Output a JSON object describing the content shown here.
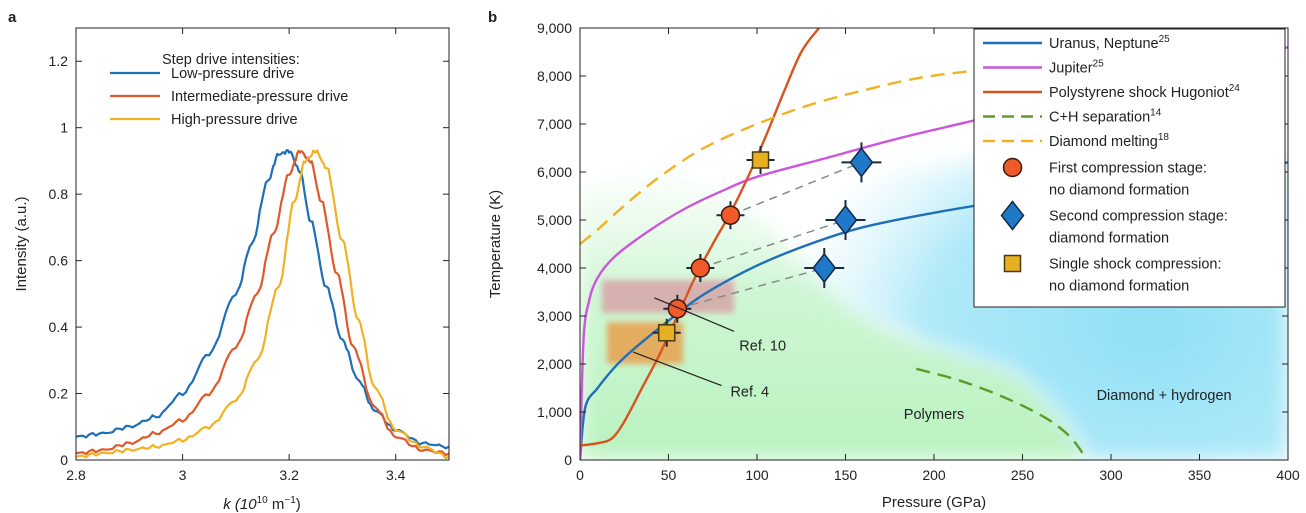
{
  "chart_data": [
    {
      "panel_label": "a",
      "type": "line",
      "xlabel_pre": "k (10",
      "xlabel_exp": "10",
      "xlabel_mid": " m",
      "xlabel_exp2": "−1",
      "xlabel_post": ")",
      "ylabel": "Intensity (a.u.)",
      "xlim": [
        2.8,
        3.5
      ],
      "ylim": [
        0,
        1.3
      ],
      "xticks": [
        2.8,
        3,
        3.2,
        3.4
      ],
      "xtick_labels": [
        "2.8",
        "3",
        "3.2",
        "3.4"
      ],
      "yticks": [
        0,
        0.2,
        0.4,
        0.6,
        0.8,
        1,
        1.2
      ],
      "ytick_labels": [
        "0",
        "0.2",
        "0.4",
        "0.6",
        "0.8",
        "1",
        "1.2"
      ],
      "legend_title": "Step drive intensities:",
      "legend_position": "top-left",
      "series": [
        {
          "name": "Low-pressure drive",
          "color": "#1f6fb8",
          "x": [
            2.8,
            2.85,
            2.9,
            2.95,
            3.0,
            3.05,
            3.1,
            3.13,
            3.16,
            3.18,
            3.2,
            3.22,
            3.24,
            3.27,
            3.3,
            3.33,
            3.36,
            3.4,
            3.45,
            3.5
          ],
          "y": [
            0.07,
            0.08,
            0.1,
            0.13,
            0.2,
            0.32,
            0.5,
            0.65,
            0.84,
            0.92,
            0.93,
            0.87,
            0.72,
            0.52,
            0.36,
            0.24,
            0.15,
            0.09,
            0.05,
            0.04
          ]
        },
        {
          "name": "Intermediate-pressure drive",
          "color": "#e0592a",
          "x": [
            2.8,
            2.85,
            2.9,
            2.95,
            3.0,
            3.05,
            3.1,
            3.14,
            3.17,
            3.2,
            3.22,
            3.24,
            3.26,
            3.29,
            3.32,
            3.36,
            3.4,
            3.45,
            3.5
          ],
          "y": [
            0.02,
            0.03,
            0.05,
            0.08,
            0.12,
            0.2,
            0.34,
            0.5,
            0.68,
            0.86,
            0.93,
            0.9,
            0.78,
            0.56,
            0.34,
            0.16,
            0.07,
            0.03,
            0.02
          ]
        },
        {
          "name": "High-pressure drive",
          "color": "#f2b122",
          "x": [
            2.8,
            2.85,
            2.9,
            2.95,
            3.0,
            3.05,
            3.1,
            3.14,
            3.18,
            3.21,
            3.23,
            3.25,
            3.27,
            3.3,
            3.33,
            3.36,
            3.4,
            3.45,
            3.5
          ],
          "y": [
            0.01,
            0.02,
            0.03,
            0.04,
            0.06,
            0.1,
            0.18,
            0.3,
            0.52,
            0.78,
            0.9,
            0.93,
            0.88,
            0.66,
            0.42,
            0.22,
            0.09,
            0.04,
            0.01
          ]
        }
      ]
    },
    {
      "panel_label": "b",
      "type": "line",
      "xlabel": "Pressure (GPa)",
      "ylabel": "Temperature (K)",
      "xlim": [
        0,
        400
      ],
      "ylim": [
        0,
        9000
      ],
      "xticks": [
        0,
        50,
        100,
        150,
        200,
        250,
        300,
        350,
        400
      ],
      "xtick_labels": [
        "0",
        "50",
        "100",
        "150",
        "200",
        "250",
        "300",
        "350",
        "400"
      ],
      "yticks": [
        0,
        1000,
        2000,
        3000,
        4000,
        5000,
        6000,
        7000,
        8000,
        9000
      ],
      "ytick_labels": [
        "0",
        "1,000",
        "2,000",
        "3,000",
        "4,000",
        "5,000",
        "6,000",
        "7,000",
        "8,000",
        "9,000"
      ],
      "legend_position": "top-right",
      "region_labels": [
        {
          "text": "Polymers",
          "x": 200,
          "y": 850
        },
        {
          "text": "Diamond + hydrogen",
          "x": 330,
          "y": 1250
        }
      ],
      "annotations": [
        {
          "text": "Ref. 10",
          "x": 90,
          "y": 2280,
          "line_from": [
            42,
            3380
          ],
          "line_to": [
            87,
            2680
          ]
        },
        {
          "text": "Ref. 4",
          "x": 85,
          "y": 1320,
          "line_from": [
            30,
            2250
          ],
          "line_to": [
            80,
            1550
          ]
        }
      ],
      "series": [
        {
          "name": "Uranus, Neptune",
          "ref": "25",
          "color": "#1f6fb8",
          "dash": "solid",
          "x": [
            0,
            3,
            10,
            20,
            30,
            50,
            70,
            100,
            130,
            160,
            200,
            250,
            300,
            350,
            400
          ],
          "y": [
            0,
            1100,
            1500,
            1950,
            2300,
            2900,
            3450,
            4050,
            4500,
            4850,
            5150,
            5450,
            5700,
            5950,
            6200
          ]
        },
        {
          "name": "Jupiter",
          "ref": "25",
          "color": "#cc55dd",
          "dash": "solid",
          "x": [
            0,
            2,
            5,
            10,
            20,
            40,
            60,
            80,
            100,
            140,
            180,
            220,
            260,
            300,
            350,
            400
          ],
          "y": [
            0,
            2500,
            3300,
            3800,
            4250,
            4800,
            5250,
            5600,
            5900,
            6300,
            6700,
            7050,
            7400,
            7750,
            8150,
            8600
          ]
        },
        {
          "name": "Polystyrene shock Hugoniot",
          "ref": "24",
          "color": "#d9531e",
          "dash": "solid",
          "x": [
            0,
            10,
            18,
            25,
            35,
            45,
            55,
            65,
            75,
            85,
            95,
            105,
            115,
            125,
            135
          ],
          "y": [
            300,
            350,
            450,
            800,
            1500,
            2200,
            3000,
            3800,
            4500,
            5150,
            5900,
            6750,
            7650,
            8500,
            9000
          ]
        },
        {
          "name": "C+H separation",
          "ref": "14",
          "color": "#5e9a2a",
          "dash": "dashed",
          "x": [
            190,
            215,
            240,
            262,
            275,
            282,
            286
          ],
          "y": [
            1900,
            1650,
            1300,
            900,
            550,
            250,
            0
          ]
        },
        {
          "name": "Diamond melting",
          "ref": "18",
          "color": "#f2b122",
          "dash": "dashed",
          "x": [
            0,
            10,
            25,
            45,
            70,
            100,
            130,
            160,
            190,
            220,
            250,
            280
          ],
          "y": [
            4500,
            4800,
            5300,
            5900,
            6500,
            7000,
            7400,
            7700,
            7950,
            8100,
            8200,
            8250
          ]
        }
      ],
      "tie_lines": [
        {
          "from": [
            55,
            3150
          ],
          "to": [
            138,
            4000
          ]
        },
        {
          "from": [
            68,
            4000
          ],
          "to": [
            150,
            5000
          ]
        },
        {
          "from": [
            85,
            5100
          ],
          "to": [
            159,
            6200
          ]
        }
      ],
      "markers": [
        {
          "name": "First compression stage:",
          "name2": "no diamond formation",
          "shape": "circle",
          "color": "#f05a28",
          "points": [
            {
              "x": 55,
              "y": 3150
            },
            {
              "x": 68,
              "y": 4000
            },
            {
              "x": 85,
              "y": 5100
            }
          ]
        },
        {
          "name": "Second compression stage:",
          "name2": "diamond formation",
          "shape": "diamond",
          "color": "#1f78c8",
          "points": [
            {
              "x": 138,
              "y": 4000
            },
            {
              "x": 150,
              "y": 5000
            },
            {
              "x": 159,
              "y": 6200
            }
          ]
        },
        {
          "name": "Single shock compression:",
          "name2": "no diamond formation",
          "shape": "square",
          "color": "#e8b020",
          "points": [
            {
              "x": 49,
              "y": 2650
            },
            {
              "x": 102,
              "y": 6250
            }
          ]
        }
      ]
    }
  ]
}
